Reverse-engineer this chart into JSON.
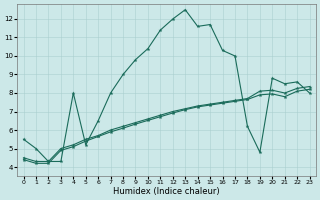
{
  "xlabel": "Humidex (Indice chaleur)",
  "xlim": [
    -0.5,
    23.5
  ],
  "ylim": [
    3.5,
    12.8
  ],
  "yticks": [
    4,
    5,
    6,
    7,
    8,
    9,
    10,
    11,
    12
  ],
  "xticks": [
    0,
    1,
    2,
    3,
    4,
    5,
    6,
    7,
    8,
    9,
    10,
    11,
    12,
    13,
    14,
    15,
    16,
    17,
    18,
    19,
    20,
    21,
    22,
    23
  ],
  "bg_color": "#cce8e8",
  "grid_color": "#aacfcf",
  "line_color": "#1a6b5a",
  "line1_x": [
    0,
    1,
    2,
    3,
    4,
    5,
    6,
    7,
    8,
    9,
    10,
    11,
    12,
    13,
    14,
    15,
    16,
    17,
    18,
    19,
    20,
    21,
    22,
    23
  ],
  "line1_y": [
    5.5,
    5.0,
    4.3,
    4.3,
    8.0,
    5.2,
    6.5,
    8.0,
    9.0,
    9.8,
    10.4,
    11.4,
    12.0,
    12.5,
    11.6,
    11.7,
    10.3,
    10.0,
    6.2,
    4.8,
    8.8,
    8.5,
    8.6,
    8.0
  ],
  "line2_x": [
    0,
    1,
    2,
    3,
    4,
    5,
    6,
    7,
    8,
    9,
    10,
    11,
    12,
    13,
    14,
    15,
    16,
    17,
    18,
    19,
    20,
    21,
    22,
    23
  ],
  "line2_y": [
    4.5,
    4.3,
    4.3,
    5.0,
    5.2,
    5.5,
    5.7,
    6.0,
    6.2,
    6.4,
    6.6,
    6.8,
    7.0,
    7.15,
    7.3,
    7.4,
    7.5,
    7.6,
    7.7,
    8.1,
    8.15,
    8.0,
    8.25,
    8.35
  ],
  "line3_x": [
    0,
    1,
    2,
    3,
    4,
    5,
    6,
    7,
    8,
    9,
    10,
    11,
    12,
    13,
    14,
    15,
    16,
    17,
    18,
    19,
    20,
    21,
    22,
    23
  ],
  "line3_y": [
    4.4,
    4.2,
    4.2,
    4.9,
    5.1,
    5.4,
    5.65,
    5.9,
    6.1,
    6.32,
    6.52,
    6.72,
    6.92,
    7.1,
    7.25,
    7.35,
    7.45,
    7.55,
    7.65,
    7.9,
    7.95,
    7.8,
    8.1,
    8.2
  ]
}
